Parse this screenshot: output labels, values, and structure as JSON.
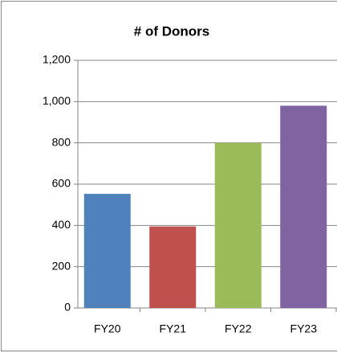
{
  "chart_data": {
    "type": "bar",
    "title": "# of Donors",
    "categories": [
      "FY20",
      "FY21",
      "FY22",
      "FY23"
    ],
    "values": [
      553,
      395,
      800,
      980
    ],
    "colors": [
      "#4f81bd",
      "#c0504d",
      "#9bbb59",
      "#8064a2"
    ],
    "ylim": [
      0,
      1200
    ],
    "yticks": [
      0,
      200,
      400,
      600,
      800,
      {
        "value": 1000,
        "label": "1,000"
      },
      {
        "value": 1200,
        "label": "1,200"
      }
    ],
    "grid": true
  }
}
